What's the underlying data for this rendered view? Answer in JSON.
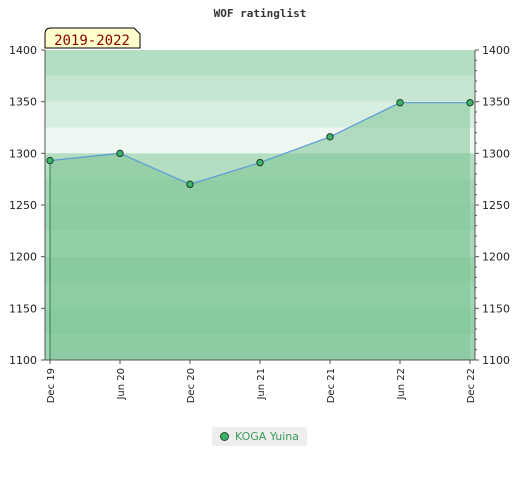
{
  "chart_data": {
    "type": "line",
    "title": "WOF ratinglist",
    "period_label": "2019-2022",
    "categories": [
      "Dec 19",
      "Jun 20",
      "Dec 20",
      "Jun 21",
      "Dec 21",
      "Jun 22",
      "Dec 22"
    ],
    "series": [
      {
        "name": "KOGA Yuina",
        "values": [
          1293,
          1300,
          1270,
          1291,
          1316,
          1349,
          1349
        ]
      }
    ],
    "ylim": [
      1100,
      1400
    ],
    "yticks": [
      "1100",
      "1150",
      "1200",
      "1250",
      "1300",
      "1350",
      "1400"
    ],
    "grid": true,
    "legend": "bottom-center",
    "colors": {
      "line": "#5b9bd5",
      "marker": "#3db36a",
      "fill": "#7dc595"
    }
  }
}
